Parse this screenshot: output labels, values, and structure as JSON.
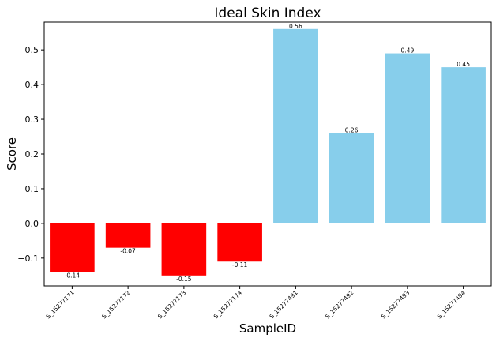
{
  "chart_data": {
    "type": "bar",
    "title": "Ideal Skin Index",
    "xlabel": "SampleID",
    "ylabel": "Score",
    "categories": [
      "S_15277171",
      "S_15277172",
      "S_15277173",
      "S_15277174",
      "S_15277491",
      "S_15277492",
      "S_15277493",
      "S_15277494"
    ],
    "values": [
      -0.14,
      -0.07,
      -0.15,
      -0.11,
      0.56,
      0.26,
      0.49,
      0.45
    ],
    "value_labels": [
      "-0.14",
      "-0.07",
      "-0.15",
      "-0.11",
      "0.56",
      "0.26",
      "0.49",
      "0.45"
    ],
    "ylim": [
      -0.18,
      0.58
    ],
    "yticks": [
      -0.1,
      0.0,
      0.1,
      0.2,
      0.3,
      0.4,
      0.5
    ],
    "ytick_labels": [
      "−0.1",
      "0.0",
      "0.1",
      "0.2",
      "0.3",
      "0.4",
      "0.5"
    ],
    "colors": {
      "negative": "#ff0000",
      "positive": "#87ceeb"
    },
    "grid": false,
    "legend": "none"
  }
}
